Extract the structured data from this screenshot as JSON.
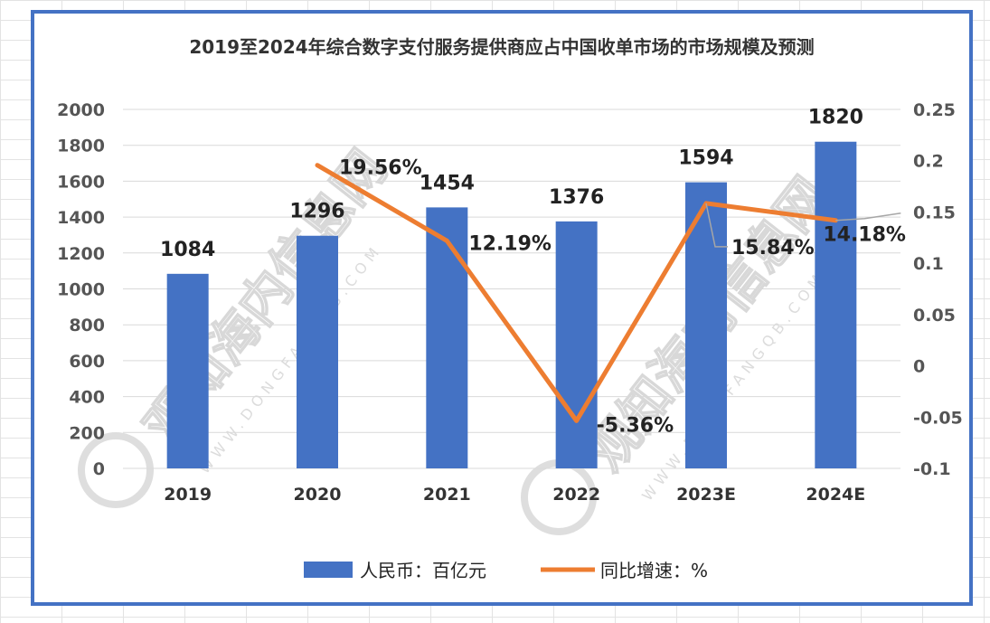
{
  "chart_data": {
    "type": "bar",
    "title": "2019至2024年综合数字支付服务提供商应占中国收单市场的市场规模及预测",
    "categories": [
      "2019",
      "2020",
      "2021",
      "2022",
      "2023E",
      "2024E"
    ],
    "series": [
      {
        "name": "人民币：百亿元",
        "type": "bar",
        "axis": "left",
        "color": "#4472c4",
        "values": [
          1084,
          1296,
          1454,
          1376,
          1594,
          1820
        ],
        "labels": [
          "1084",
          "1296",
          "1454",
          "1376",
          "1594",
          "1820"
        ]
      },
      {
        "name": "同比增速：%",
        "type": "line",
        "axis": "right",
        "color": "#ed7d31",
        "values": [
          null,
          0.1956,
          0.1219,
          -0.0536,
          0.1584,
          0.1418
        ],
        "labels": [
          "",
          "19.56%",
          "12.19%",
          "-5.36%",
          "15.84%",
          "14.18%"
        ]
      }
    ],
    "y_left": {
      "min": 0,
      "max": 2000,
      "ticks": [
        "0",
        "200",
        "400",
        "600",
        "800",
        "1000",
        "1200",
        "1400",
        "1600",
        "1800",
        "2000"
      ]
    },
    "y_right": {
      "min": -0.1,
      "max": 0.25,
      "ticks": [
        "-0.1",
        "-0.05",
        "0",
        "0.05",
        "0.1",
        "0.15",
        "0.2",
        "0.25"
      ]
    },
    "grid": true,
    "legend": "bottom",
    "watermark": "观知海内信息网",
    "watermark_url": "WWW.DONGFANGQB.COM"
  }
}
